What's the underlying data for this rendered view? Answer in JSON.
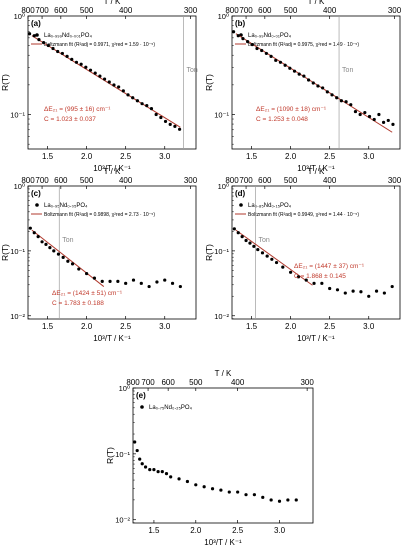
{
  "colors": {
    "points": "#000000",
    "fit": "#b03a2e",
    "annotation": "#c0392b",
    "tonline": "#9e9e9e",
    "frame": "#000000"
  },
  "chart_data": [
    {
      "panel_label": "(a)",
      "type": "scatter",
      "top_axis_label": "T / K",
      "top_ticks": [
        "800",
        "700",
        "600",
        "500",
        "400",
        "300"
      ],
      "xlabel": "10³/T / K⁻¹",
      "ylabel": "R(T)",
      "x_ticks": [
        "1.5",
        "2.0",
        "2.5",
        "3.0"
      ],
      "y_ticks": [
        "10⁰",
        "10⁻¹"
      ],
      "xlim": [
        1.25,
        3.4
      ],
      "ylim_log10": [
        -1.35,
        0
      ],
      "legend": {
        "series": "La₀.₉₉₉Nd₀.₀₀₁PO₄",
        "fit": "Boltzmann fit (R²adj = 0.9971, χ²red = 1.59 · 10⁻⁵)"
      },
      "ton_label": "Ton",
      "ton_x": 3.24,
      "annotation": [
        "ΔE₂₁ = (995 ± 16) cm⁻¹",
        "C = 1.023 ± 0.037"
      ],
      "fit": {
        "x": [
          1.3,
          3.2
        ],
        "log10y": [
          -0.2,
          -1.13
        ]
      },
      "points": {
        "x": [
          1.27,
          1.33,
          1.39,
          1.45,
          1.51,
          1.57,
          1.63,
          1.69,
          1.75,
          1.81,
          1.87,
          1.93,
          1.99,
          2.05,
          2.11,
          2.17,
          2.23,
          2.29,
          2.35,
          2.41,
          2.47,
          2.53,
          2.59,
          2.65,
          2.71,
          2.77,
          2.83,
          2.89,
          2.95,
          3.01,
          3.07,
          3.13,
          3.19
        ],
        "log10y": [
          -0.18,
          -0.2,
          -0.24,
          -0.27,
          -0.3,
          -0.33,
          -0.36,
          -0.38,
          -0.41,
          -0.44,
          -0.47,
          -0.49,
          -0.52,
          -0.55,
          -0.58,
          -0.61,
          -0.64,
          -0.67,
          -0.7,
          -0.72,
          -0.76,
          -0.8,
          -0.83,
          -0.86,
          -0.89,
          -0.91,
          -0.94,
          -1.0,
          -1.03,
          -1.07,
          -1.1,
          -1.12,
          -1.15
        ]
      }
    },
    {
      "panel_label": "(b)",
      "type": "scatter",
      "top_axis_label": "T / K",
      "top_ticks": [
        "800",
        "700",
        "600",
        "500",
        "400",
        "300"
      ],
      "xlabel": "10³/T / K⁻¹",
      "ylabel": "R(T)",
      "x_ticks": [
        "1.5",
        "2.0",
        "2.5",
        "3.0"
      ],
      "y_ticks": [
        "10⁰",
        "10⁻¹"
      ],
      "xlim": [
        1.25,
        3.4
      ],
      "ylim_log10": [
        -1.35,
        0
      ],
      "legend": {
        "series": "La₀.₉₉Nd₀.₀₁PO₄",
        "fit": "Boltzmann fit (R²adj = 0.9975, χ²red = 1.49 · 10⁻⁵)"
      },
      "ton_label": "Ton",
      "ton_x": 2.62,
      "annotation": [
        "ΔE₂₁ = (1090 ± 18) cm⁻¹",
        "C = 1.253 ± 0.048"
      ],
      "fit": {
        "x": [
          1.3,
          3.3
        ],
        "log10y": [
          -0.18,
          -1.18
        ]
      },
      "points": {
        "x": [
          1.27,
          1.33,
          1.39,
          1.45,
          1.51,
          1.57,
          1.63,
          1.69,
          1.75,
          1.81,
          1.87,
          1.93,
          1.99,
          2.05,
          2.11,
          2.17,
          2.23,
          2.29,
          2.35,
          2.41,
          2.47,
          2.53,
          2.59,
          2.65,
          2.71,
          2.77,
          2.83,
          2.89,
          2.95,
          3.01,
          3.07,
          3.13,
          3.19,
          3.25,
          3.31
        ],
        "log10y": [
          -0.16,
          -0.2,
          -0.23,
          -0.26,
          -0.29,
          -0.33,
          -0.35,
          -0.38,
          -0.41,
          -0.45,
          -0.47,
          -0.5,
          -0.53,
          -0.56,
          -0.59,
          -0.61,
          -0.65,
          -0.68,
          -0.71,
          -0.73,
          -0.77,
          -0.8,
          -0.83,
          -0.86,
          -0.87,
          -0.9,
          -0.97,
          -1.0,
          -0.98,
          -1.02,
          -1.05,
          -1.0,
          -1.08,
          -1.06,
          -1.1
        ]
      }
    },
    {
      "panel_label": "(c)",
      "type": "scatter",
      "top_axis_label": "T / K",
      "top_ticks": [
        "800",
        "700",
        "600",
        "500",
        "400",
        "300"
      ],
      "xlabel": "10³/T / K⁻¹",
      "ylabel": "R(T)",
      "x_ticks": [
        "1.5",
        "2.0",
        "2.5",
        "3.0"
      ],
      "y_ticks": [
        "10⁰",
        "10⁻¹",
        "10⁻²"
      ],
      "xlim": [
        1.25,
        3.4
      ],
      "ylim_log10": [
        -2.05,
        0
      ],
      "legend": {
        "series": "La₀.₉₅Nd₀.₀₅PO₄",
        "fit": "Boltzmann fit (R²adj = 0.9898, χ²red = 2.73 · 10⁻⁵)"
      },
      "ton_label": "Ton",
      "ton_x": 1.65,
      "annotation": [
        "ΔE₂₁ = (1424 ± 51) cm⁻¹",
        "C = 1.783 ± 0.188"
      ],
      "fit": {
        "x": [
          1.3,
          2.22
        ],
        "log10y": [
          -0.68,
          -1.55
        ]
      },
      "points": {
        "x": [
          1.28,
          1.33,
          1.38,
          1.43,
          1.48,
          1.53,
          1.58,
          1.64,
          1.7,
          1.76,
          1.82,
          1.9,
          2.0,
          2.1,
          2.2,
          2.3,
          2.4,
          2.5,
          2.6,
          2.7,
          2.8,
          2.9,
          3.0,
          3.1,
          3.2
        ],
        "log10y": [
          -0.65,
          -0.72,
          -0.78,
          -0.86,
          -0.9,
          -0.95,
          -1.0,
          -1.05,
          -1.1,
          -1.16,
          -1.2,
          -1.28,
          -1.35,
          -1.42,
          -1.47,
          -1.47,
          -1.47,
          -1.5,
          -1.45,
          -1.5,
          -1.55,
          -1.48,
          -1.45,
          -1.5,
          -1.55
        ]
      }
    },
    {
      "panel_label": "(d)",
      "type": "scatter",
      "top_axis_label": "T / K",
      "top_ticks": [
        "800",
        "700",
        "600",
        "500",
        "400",
        "300"
      ],
      "xlabel": "10³/T / K⁻¹",
      "ylabel": "R(T)",
      "x_ticks": [
        "1.5",
        "2.0",
        "2.5",
        "3.0"
      ],
      "y_ticks": [
        "10⁰",
        "10⁻¹",
        "10⁻²"
      ],
      "xlim": [
        1.25,
        3.4
      ],
      "ylim_log10": [
        -2.05,
        0
      ],
      "legend": {
        "series": "La₀.₈₅Nd₀.₁₅PO₄",
        "fit": "Boltzmann fit (R²adj = 0.9949, χ²red = 1.44 · 10⁻⁵)"
      },
      "ton_label": "Ton",
      "ton_x": 1.55,
      "annotation": [
        "ΔE₂₁ = (1447 ± 37) cm⁻¹",
        "C = 1.868 ± 0.145"
      ],
      "fit": {
        "x": [
          1.3,
          2.28
        ],
        "log10y": [
          -0.68,
          -1.53
        ]
      },
      "points": {
        "x": [
          1.28,
          1.33,
          1.38,
          1.43,
          1.48,
          1.53,
          1.58,
          1.64,
          1.7,
          1.76,
          1.82,
          1.9,
          2.0,
          2.1,
          2.2,
          2.3,
          2.4,
          2.5,
          2.6,
          2.7,
          2.8,
          2.9,
          3.0,
          3.1,
          3.2,
          3.3
        ],
        "log10y": [
          -0.66,
          -0.72,
          -0.78,
          -0.84,
          -0.88,
          -0.93,
          -0.98,
          -1.03,
          -1.08,
          -1.13,
          -1.18,
          -1.25,
          -1.33,
          -1.4,
          -1.45,
          -1.5,
          -1.5,
          -1.58,
          -1.6,
          -1.65,
          -1.62,
          -1.63,
          -1.7,
          -1.62,
          -1.65,
          -1.55
        ]
      }
    },
    {
      "panel_label": "(e)",
      "type": "scatter",
      "top_axis_label": "T / K",
      "top_ticks": [
        "800",
        "700",
        "600",
        "500",
        "400",
        "300"
      ],
      "xlabel": "10³/T / K⁻¹",
      "ylabel": "R(T)",
      "x_ticks": [
        "1.5",
        "2.0",
        "2.5",
        "3.0"
      ],
      "y_ticks": [
        "10⁰",
        "10⁻¹",
        "10⁻²"
      ],
      "xlim": [
        1.25,
        3.4
      ],
      "ylim_log10": [
        -2.05,
        0
      ],
      "legend": {
        "series": "La₀.₇₅Nd₀.₂₅PO₄",
        "fit": ""
      },
      "ton_label": "",
      "ton_x": null,
      "annotation": [],
      "fit": null,
      "points": {
        "x": [
          1.27,
          1.3,
          1.33,
          1.36,
          1.4,
          1.45,
          1.5,
          1.55,
          1.6,
          1.65,
          1.7,
          1.8,
          1.9,
          2.0,
          2.1,
          2.2,
          2.3,
          2.4,
          2.5,
          2.6,
          2.7,
          2.8,
          2.9,
          3.0,
          3.1,
          3.2
        ],
        "log10y": [
          -0.82,
          -0.95,
          -1.08,
          -1.15,
          -1.2,
          -1.24,
          -1.24,
          -1.27,
          -1.27,
          -1.3,
          -1.35,
          -1.38,
          -1.42,
          -1.47,
          -1.5,
          -1.53,
          -1.55,
          -1.58,
          -1.58,
          -1.62,
          -1.62,
          -1.66,
          -1.7,
          -1.72,
          -1.7,
          -1.7
        ]
      }
    }
  ]
}
